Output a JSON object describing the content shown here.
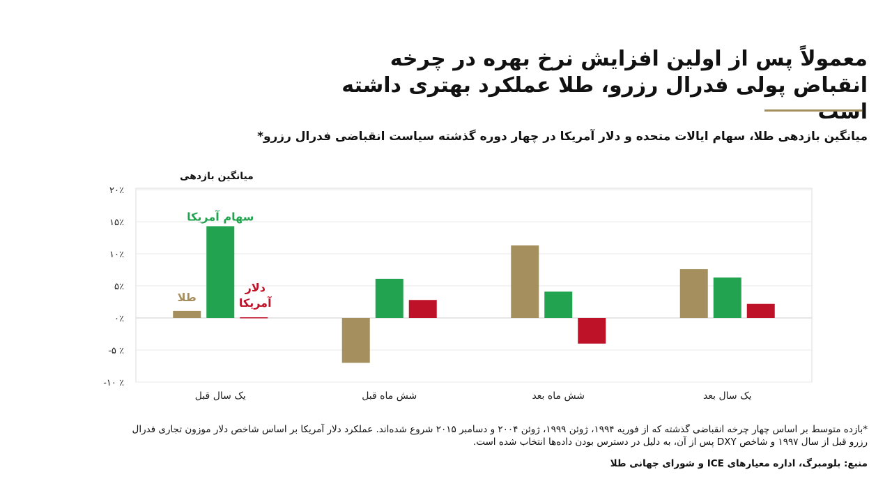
{
  "title": "معمولاً پس از اولین افزایش نرخ بهره در چرخه انقباض پولی فدرال رزرو، طلا عملکرد بهتری داشته است",
  "subtitle": "میانگین بازدهی طلا، سهام ایالات متحده و دلار آمریکا در چهار دوره گذشته سیاست انقباضی فدرال رزرو*",
  "footnote": "*بازده متوسط بر اساس چهار چرخه انقباضی گذشته که از فوریه ۱۹۹۴، ژوئن ۱۹۹۹، ژوئن ۲۰۰۴ و دسامبر ۲۰۱۵ شروع شده‌اند. عملکرد دلار آمریکا بر اساس شاخص دلار موزون تجاری فدرال رزرو قبل از سال ۱۹۹۷ و شاخص DXY پس از آن، به دلیل در دسترس بودن داده‌ها انتخاب شده است.",
  "source": "منبع: بلومبرگ، اداره معیارهای ICE و شورای جهانی طلا",
  "chart_data": {
    "type": "bar",
    "ylabel": "میانگین بازدهی",
    "ylim": [
      -10,
      20
    ],
    "yticks": [
      20,
      15,
      10,
      5,
      0,
      -5,
      -10
    ],
    "ytick_labels": [
      "۲۰٪",
      "۱۵٪",
      "۱۰٪",
      "۵٪",
      "۰٪",
      "-۵ ٪",
      "-۱۰ ٪"
    ],
    "grid": true,
    "categories": [
      "یک سال قبل",
      "شش ماه قبل",
      "شش ماه بعد",
      "یک سال بعد"
    ],
    "series": [
      {
        "name": "طلا",
        "color": "#a58f5e",
        "values": [
          1.1,
          -7.0,
          11.3,
          7.6
        ]
      },
      {
        "name": "سهام آمریکا",
        "color": "#22a34f",
        "values": [
          14.3,
          6.1,
          4.1,
          6.3
        ]
      },
      {
        "name": "دلار آمریکا",
        "color": "#be1229",
        "values": [
          0.1,
          2.8,
          -4.0,
          2.2
        ]
      }
    ]
  }
}
